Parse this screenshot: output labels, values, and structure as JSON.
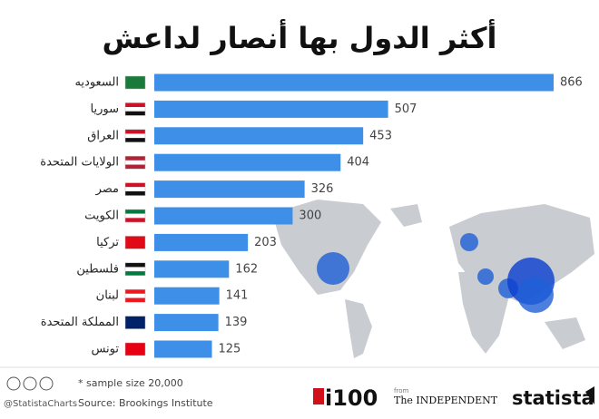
{
  "chart_data": {
    "type": "bar",
    "orientation": "horizontal",
    "title": "أكثر الدول بها أنصار لداعش",
    "categories": [
      "السعوديه",
      "سوريا",
      "العراق",
      "الولايات المتحدة",
      "مصر",
      "الكويت",
      "تركيا",
      "فلسطين",
      "لبنان",
      "المملكة المتحدة",
      "تونس"
    ],
    "values": [
      866,
      507,
      453,
      404,
      326,
      300,
      203,
      162,
      141,
      139,
      125
    ],
    "color": "#3d8fe8",
    "footnote": "* sample size 20,000",
    "source": "Source: Brookings Institute",
    "credit": "@StatistaCharts",
    "logos": {
      "i100": "i100",
      "from": "from",
      "independent": "The INDEPENDENT",
      "statista": "statista"
    }
  }
}
